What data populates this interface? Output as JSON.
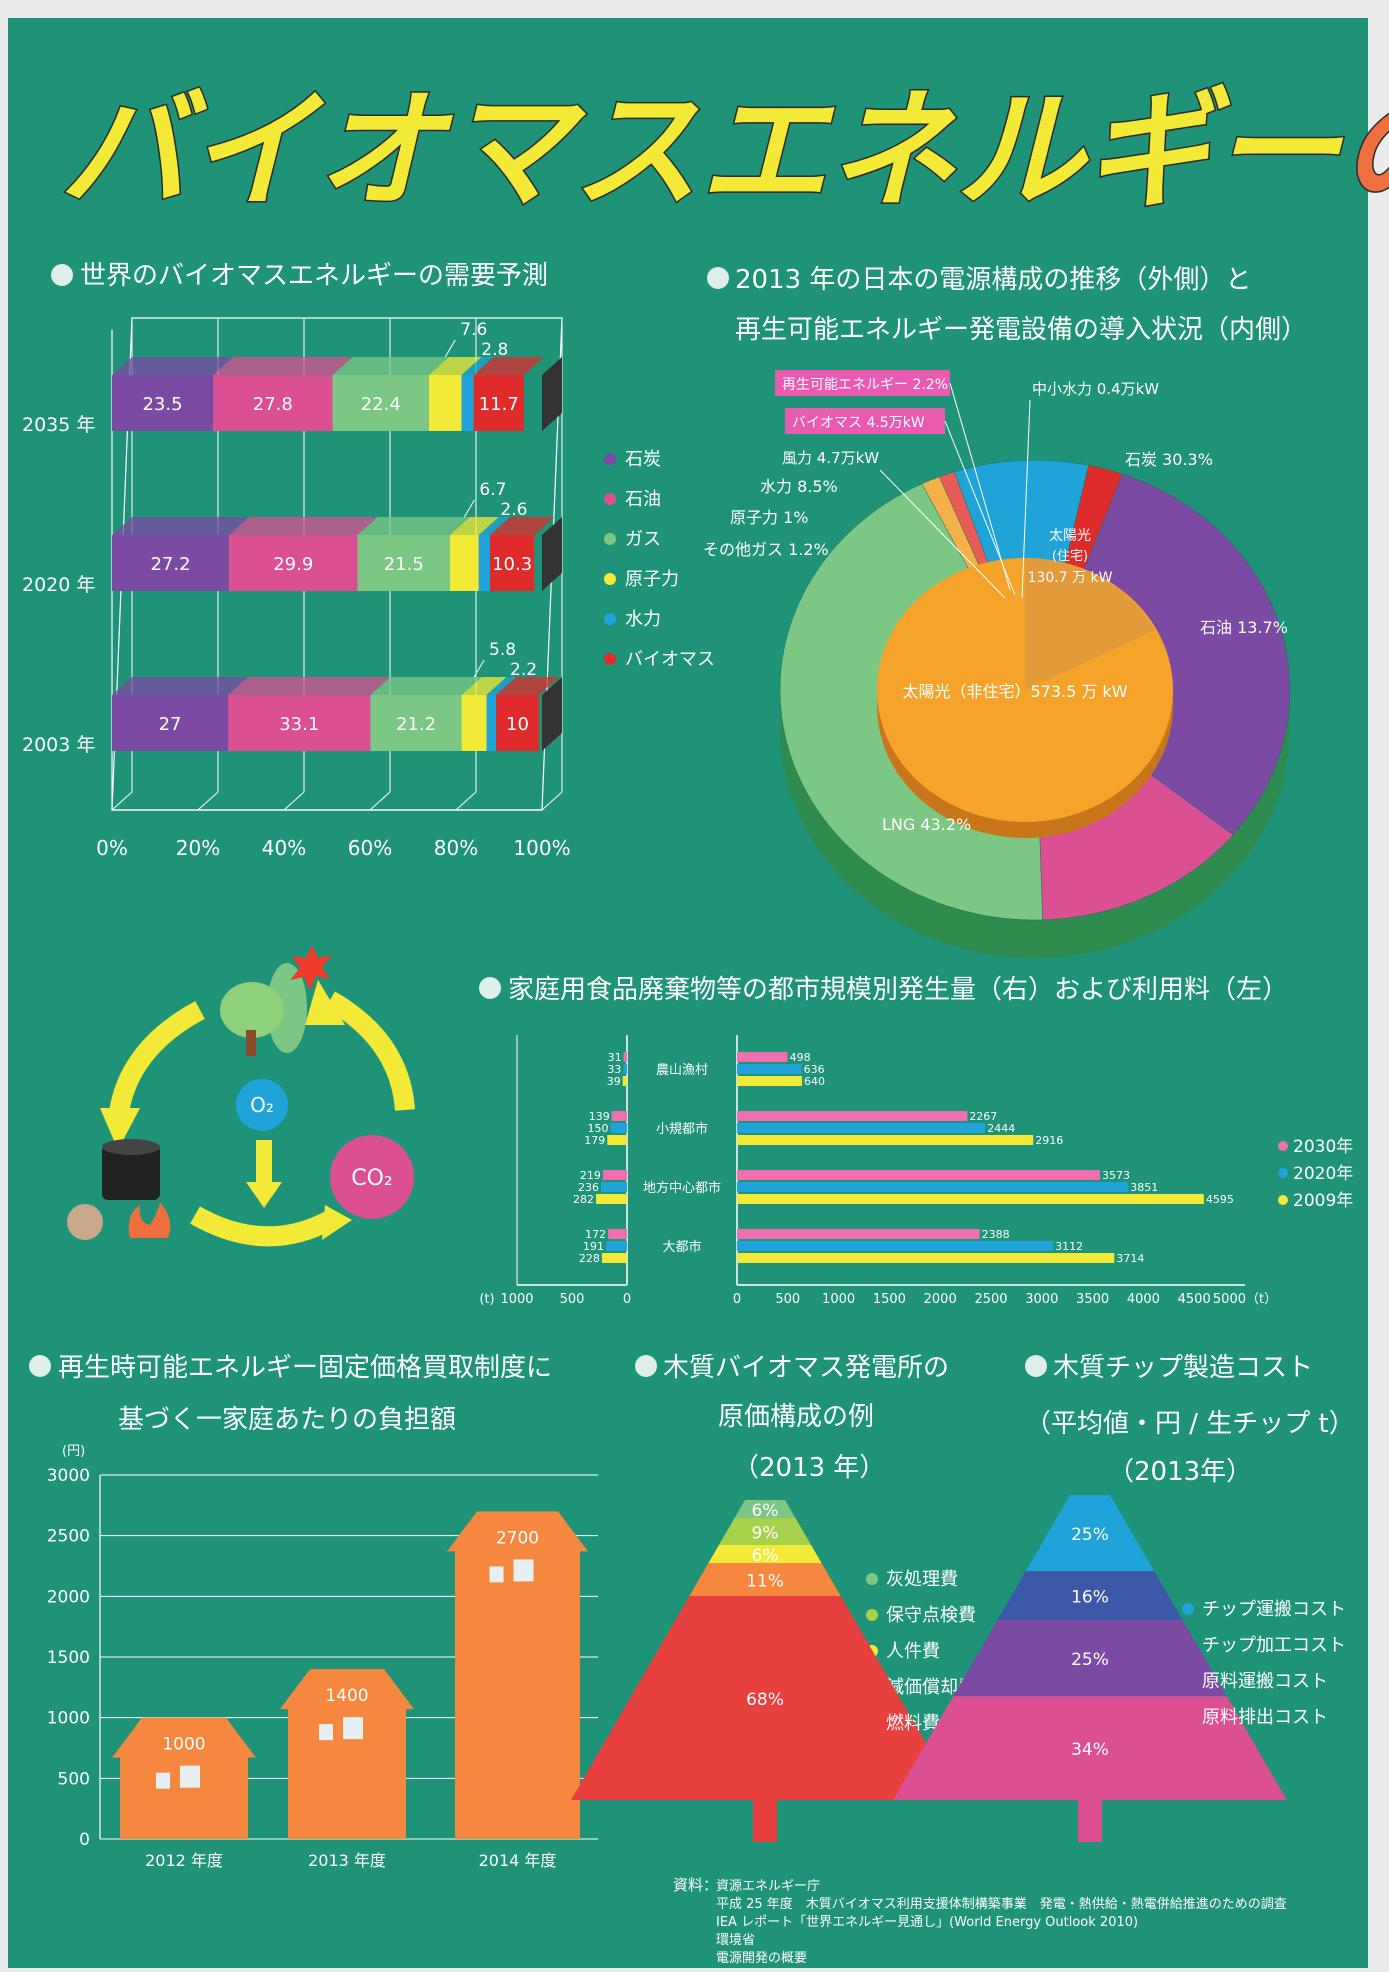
{
  "title": {
    "main": "バイオマスエネルギー",
    "accent": "の可能性"
  },
  "sections": {
    "world": "世界のバイオマスエネルギーの需要予測",
    "japan_line1": "2013 年の日本の電源構成の推移（外側）と",
    "japan_line2": "再生可能エネルギー発電設備の導入状況（内側）",
    "food": "家庭用食品廃棄物等の都市規模別発生量（右）および利用料（左）",
    "fit_line1": "再生時可能エネルギー固定価格買取制度に",
    "fit_line2": "基づく一家庭あたりの負担額",
    "plant_line1": "木質バイオマス発電所の",
    "plant_line2": "原価構成の例",
    "plant_line3": "（2013 年）",
    "chip_line1": "木質チップ製造コスト",
    "chip_line2": "（平均値・円 / 生チップ t）",
    "chip_line3": "（2013年）"
  },
  "cycle": {
    "o2": "O₂",
    "co2": "CO₂"
  },
  "colors": {
    "background": "#1f9377",
    "title_yellow": "#f2ea36",
    "title_orange": "#ef6f3f",
    "coal": "#7b4aa3",
    "oil": "#db4f93",
    "gas": "#7cc783",
    "nuclear": "#f2ea36",
    "hydro": "#1fa3d8",
    "biomass": "#df2b2b",
    "solar": "#f5a32a",
    "house": "#f5883e"
  },
  "chart_data": [
    {
      "type": "bar",
      "stacked": true,
      "orientation": "horizontal",
      "categories": [
        "2035 年",
        "2020 年",
        "2003 年"
      ],
      "series": [
        {
          "name": "石炭",
          "values": [
            23.5,
            27.2,
            27
          ]
        },
        {
          "name": "石油",
          "values": [
            27.8,
            29.9,
            33.1
          ]
        },
        {
          "name": "ガス",
          "values": [
            22.4,
            21.5,
            21.2
          ]
        },
        {
          "name": "原子力",
          "values": [
            7.6,
            6.7,
            5.8
          ]
        },
        {
          "name": "水力",
          "values": [
            2.8,
            2.6,
            2.2
          ]
        },
        {
          "name": "バイオマス",
          "values": [
            11.7,
            10.3,
            10
          ]
        }
      ],
      "xticks": [
        "0%",
        "20%",
        "40%",
        "60%",
        "80%",
        "100%"
      ],
      "xlim": [
        0,
        100
      ]
    },
    {
      "type": "pie",
      "outer": [
        {
          "label": "石炭 30.3%",
          "value": 30.3
        },
        {
          "label": "石油 13.7%",
          "value": 13.7
        },
        {
          "label": "LNG 43.2%",
          "value": 43.2
        },
        {
          "label": "その他ガス 1.2%",
          "value": 1.2
        },
        {
          "label": "原子力 1%",
          "value": 1
        },
        {
          "label": "水力 8.5%",
          "value": 8.5
        },
        {
          "label": "再生可能エネルギー 2.2%",
          "value": 2.2
        }
      ],
      "inner": [
        {
          "label": "太陽光（住宅）130.7万kW",
          "value": 130.7
        },
        {
          "label": "太陽光（非住宅）573.5万kW",
          "value": 573.5
        },
        {
          "label": "風力 4.7万kW",
          "value": 4.7
        },
        {
          "label": "バイオマス 4.5万kW",
          "value": 4.5
        },
        {
          "label": "中小水力 0.4万kW",
          "value": 0.4
        }
      ],
      "inner_text": {
        "solar_home": "太陽光",
        "solar_home2": "(住宅)",
        "solar_home3": "130.7 万 kW",
        "solar_nonhome": "太陽光（非住宅）573.5 万 kW"
      }
    },
    {
      "type": "bar",
      "orientation": "horizontal",
      "unit": "(t)",
      "categories": [
        "農山漁村",
        "小規都市",
        "地方中心都市",
        "大都市"
      ],
      "series": [
        {
          "name": "2030年",
          "right": [
            498,
            2267,
            3573,
            2388
          ],
          "left": [
            31,
            139,
            219,
            172
          ]
        },
        {
          "name": "2020年",
          "right": [
            636,
            2444,
            3851,
            3112
          ],
          "left": [
            33,
            150,
            236,
            191
          ]
        },
        {
          "name": "2009年",
          "right": [
            640,
            2916,
            4595,
            3714
          ],
          "left": [
            39,
            179,
            282,
            228
          ]
        }
      ],
      "right_ticks": [
        "0",
        "500",
        "1000",
        "1500",
        "2000",
        "2500",
        "3000",
        "3500",
        "4000",
        "4500",
        "5000（t）"
      ],
      "left_ticks": [
        "(t)",
        "1000",
        "500",
        "0"
      ],
      "right_xlim": [
        0,
        5000
      ],
      "left_xlim": [
        0,
        1000
      ]
    },
    {
      "type": "bar",
      "categories": [
        "2012 年度",
        "2013 年度",
        "2014 年度"
      ],
      "values": [
        1000,
        1400,
        2700
      ],
      "ylabel": "(円)",
      "ylim": [
        0,
        3000
      ],
      "yticks": [
        "0",
        "500",
        "1000",
        "1500",
        "2000",
        "2500",
        "3000"
      ]
    },
    {
      "type": "pie",
      "shape": "tree",
      "title": "木質バイオマス発電所の原価構成の例",
      "series": [
        {
          "name": "灰処理費",
          "value": 6
        },
        {
          "name": "保守点検費",
          "value": 9
        },
        {
          "name": "人件費",
          "value": 6
        },
        {
          "name": "減価償却費",
          "value": 11
        },
        {
          "name": "燃料費",
          "value": 68
        }
      ]
    },
    {
      "type": "pie",
      "shape": "tree",
      "title": "木質チップ製造コスト",
      "series": [
        {
          "name": "チップ運搬コスト",
          "value": 25
        },
        {
          "name": "チップ加工コスト",
          "value": 16
        },
        {
          "name": "原料運搬コスト",
          "value": 25
        },
        {
          "name": "原料排出コスト",
          "value": 34
        }
      ]
    }
  ],
  "sources": {
    "label": "資料：",
    "lines": [
      "資源エネルギー庁",
      "平成 25 年度　木質バイオマス利用支援体制構築事業　発電・熱供給・熱電併給推進のための調査",
      "IEA レポート「世界エネルギー見通し」(World Energy Outlook 2010)",
      "環境省",
      "電源開発の概要"
    ]
  }
}
